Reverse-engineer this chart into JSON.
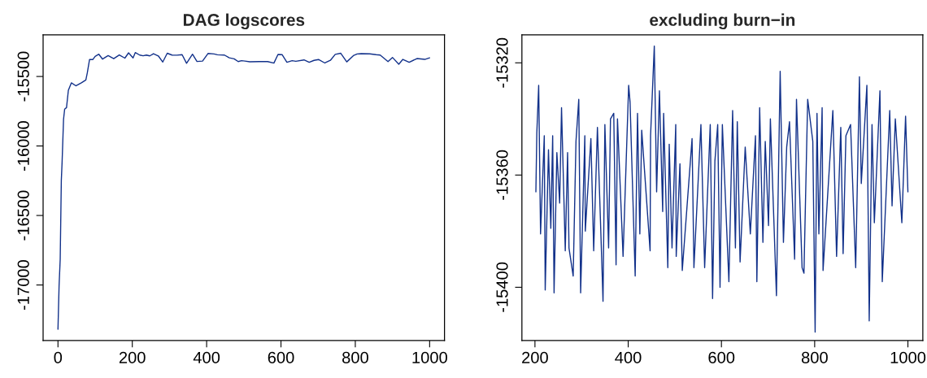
{
  "chart_data": [
    {
      "type": "line",
      "title": "DAG logscores",
      "xlim": [
        -40,
        1040
      ],
      "ylim": [
        -17400,
        -15200
      ],
      "xticks": [
        0,
        200,
        400,
        600,
        800,
        1000
      ],
      "yticks": [
        -17000,
        -16500,
        -16000,
        -15500
      ],
      "grid": false,
      "series": [
        {
          "color": "#12318a",
          "x": [
            0,
            3,
            6,
            9,
            11,
            15,
            18,
            23,
            28,
            36,
            48,
            63,
            75,
            79,
            85,
            94,
            100,
            110,
            120,
            135,
            150,
            165,
            180,
            190,
            202,
            208,
            220,
            229,
            238,
            247,
            257,
            270,
            282,
            294,
            307,
            320,
            334,
            346,
            362,
            374,
            389,
            404,
            420,
            429,
            448,
            461,
            474,
            485,
            494,
            503,
            516,
            541,
            564,
            581,
            592,
            603,
            616,
            630,
            640,
            662,
            676,
            689,
            701,
            718,
            733,
            746,
            761,
            777,
            796,
            805,
            816,
            839,
            856,
            867,
            888,
            900,
            917,
            928,
            945,
            966,
            987,
            1000
          ],
          "values": [
            -17318,
            -17004,
            -16815,
            -16249,
            -16123,
            -15808,
            -15735,
            -15724,
            -15599,
            -15546,
            -15567,
            -15546,
            -15525,
            -15473,
            -15378,
            -15378,
            -15355,
            -15340,
            -15375,
            -15350,
            -15372,
            -15345,
            -15368,
            -15330,
            -15366,
            -15328,
            -15346,
            -15351,
            -15346,
            -15352,
            -15336,
            -15352,
            -15396,
            -15333,
            -15346,
            -15347,
            -15343,
            -15405,
            -15340,
            -15392,
            -15389,
            -15334,
            -15338,
            -15344,
            -15346,
            -15366,
            -15373,
            -15393,
            -15386,
            -15389,
            -15394,
            -15393,
            -15393,
            -15404,
            -15342,
            -15343,
            -15398,
            -15386,
            -15391,
            -15381,
            -15398,
            -15384,
            -15378,
            -15403,
            -15384,
            -15341,
            -15333,
            -15395,
            -15348,
            -15338,
            -15336,
            -15337,
            -15343,
            -15346,
            -15393,
            -15363,
            -15412,
            -15377,
            -15398,
            -15371,
            -15377,
            -15366
          ]
        }
      ]
    },
    {
      "type": "line",
      "title": "excluding burn−in",
      "xlim": [
        172,
        1032
      ],
      "ylim": [
        -15419,
        -15310
      ],
      "xticks": [
        200,
        400,
        600,
        800,
        1000
      ],
      "yticks": [
        -15400,
        -15360,
        -15320
      ],
      "grid": false,
      "series": [
        {
          "color": "#12318a",
          "x": [
            202,
            204,
            208,
            212,
            220,
            222,
            229,
            234,
            238,
            241,
            247,
            253,
            257,
            265,
            270,
            273,
            282,
            288,
            294,
            298,
            307,
            308,
            320,
            326,
            334,
            343,
            346,
            350,
            358,
            362,
            369,
            374,
            377,
            389,
            401,
            404,
            415,
            420,
            425,
            429,
            447,
            448,
            456,
            461,
            467,
            474,
            476,
            485,
            488,
            494,
            502,
            503,
            511,
            516,
            537,
            541,
            556,
            564,
            576,
            581,
            586,
            592,
            597,
            602,
            616,
            624,
            630,
            634,
            640,
            651,
            662,
            673,
            676,
            682,
            689,
            694,
            701,
            705,
            718,
            726,
            733,
            740,
            746,
            757,
            761,
            773,
            777,
            785,
            796,
            801,
            805,
            809,
            816,
            818,
            839,
            847,
            856,
            861,
            867,
            877,
            888,
            896,
            900,
            912,
            917,
            923,
            928,
            940,
            945,
            961,
            966,
            973,
            987,
            995,
            1000
          ],
          "values": [
            -15366,
            -15345,
            -15328,
            -15381,
            -15346,
            -15401,
            -15351,
            -15379,
            -15346,
            -15402,
            -15352,
            -15370,
            -15336,
            -15387,
            -15352,
            -15386,
            -15396,
            -15348,
            -15333,
            -15402,
            -15346,
            -15380,
            -15347,
            -15387,
            -15343,
            -15389,
            -15405,
            -15342,
            -15386,
            -15340,
            -15338,
            -15392,
            -15340,
            -15389,
            -15328,
            -15334,
            -15396,
            -15338,
            -15381,
            -15344,
            -15387,
            -15346,
            -15314,
            -15366,
            -15330,
            -15373,
            -15338,
            -15393,
            -15349,
            -15386,
            -15342,
            -15389,
            -15356,
            -15394,
            -15347,
            -15393,
            -15342,
            -15393,
            -15342,
            -15404,
            -15355,
            -15342,
            -15400,
            -15342,
            -15398,
            -15337,
            -15386,
            -15341,
            -15391,
            -15350,
            -15381,
            -15346,
            -15398,
            -15336,
            -15384,
            -15348,
            -15378,
            -15340,
            -15403,
            -15323,
            -15384,
            -15350,
            -15341,
            -15390,
            -15333,
            -15393,
            -15395,
            -15333,
            -15348,
            -15416,
            -15338,
            -15381,
            -15336,
            -15394,
            -15337,
            -15389,
            -15343,
            -15388,
            -15346,
            -15342,
            -15393,
            -15325,
            -15363,
            -15328,
            -15412,
            -15342,
            -15377,
            -15330,
            -15398,
            -15337,
            -15371,
            -15340,
            -15377,
            -15339,
            -15366
          ]
        }
      ]
    }
  ]
}
